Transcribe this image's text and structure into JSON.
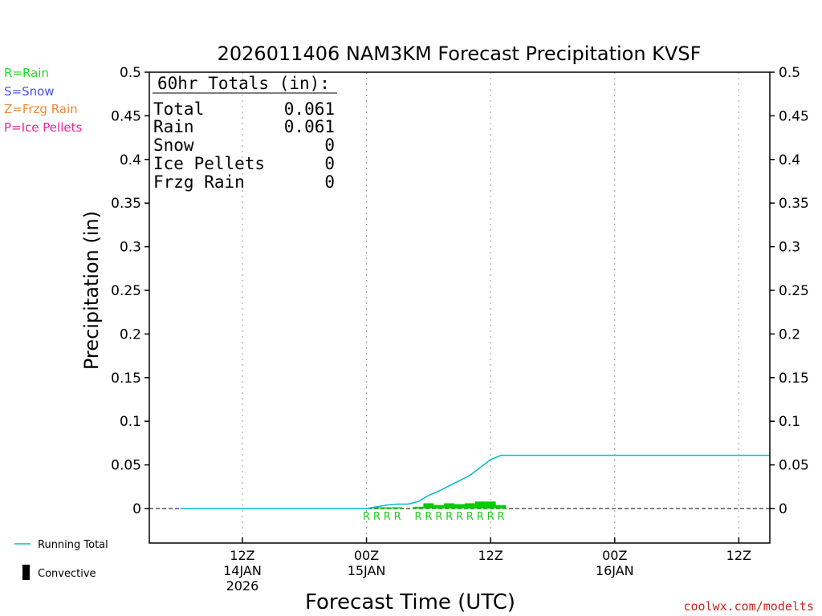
{
  "chart_data": {
    "type": "bar",
    "title": "2026011406 NAM3KM Forecast Precipitation KVSF",
    "xlabel": "Forecast Time (UTC)",
    "ylabel": "Precipitation (in)",
    "ylim": [
      -0.04,
      0.5
    ],
    "y_ticks": [
      0,
      0.05,
      0.1,
      0.15,
      0.2,
      0.25,
      0.3,
      0.35,
      0.4,
      0.45,
      0.5
    ],
    "y_tick_labels": [
      "0",
      "0.05",
      "0.1",
      "0.15",
      "0.2",
      "0.25",
      "0.3",
      "0.35",
      "0.4",
      "0.45",
      "0.5"
    ],
    "x_range_hours": [
      -3,
      57
    ],
    "x_ticks": [
      {
        "hour": 6,
        "labels": [
          "12Z",
          "14JAN",
          "2026"
        ]
      },
      {
        "hour": 18,
        "labels": [
          "00Z",
          "15JAN"
        ]
      },
      {
        "hour": 30,
        "labels": [
          "12Z"
        ]
      },
      {
        "hour": 42,
        "labels": [
          "00Z",
          "16JAN"
        ]
      },
      {
        "hour": 54,
        "labels": [
          "12Z"
        ]
      }
    ],
    "grid": "vertical dotted",
    "precip_bars": {
      "hours": [
        19,
        20,
        21,
        23,
        24,
        25,
        26,
        27,
        28,
        29,
        30,
        31
      ],
      "values": [
        0.001,
        0.001,
        0.001,
        0.002,
        0.006,
        0.004,
        0.006,
        0.005,
        0.006,
        0.008,
        0.008,
        0.004
      ],
      "type_codes": [
        "R",
        "R",
        "R",
        "R",
        "R",
        "R",
        "R",
        "R",
        "R",
        "R",
        "R",
        "R"
      ],
      "color": "#00cc00"
    },
    "type_marker_hours": [
      18,
      19,
      20,
      21,
      23,
      24,
      25,
      26,
      27,
      28,
      29,
      30,
      31
    ],
    "running_total": {
      "name": "Running Total",
      "color": "#00bbcc",
      "hours": [
        0,
        18,
        19,
        20,
        21,
        22,
        23,
        24,
        25,
        26,
        27,
        28,
        29,
        30,
        31,
        57
      ],
      "values": [
        0,
        0,
        0.002,
        0.004,
        0.005,
        0.005,
        0.008,
        0.015,
        0.02,
        0.026,
        0.032,
        0.038,
        0.047,
        0.056,
        0.061,
        0.061
      ]
    }
  },
  "legend": {
    "rain": {
      "text": "R=Rain",
      "color": "#22dd22"
    },
    "snow": {
      "text": "S=Snow",
      "color": "#4455ee"
    },
    "frzg": {
      "text": "Z=Frzg Rain",
      "color": "#ee8833"
    },
    "ice": {
      "text": "P=Ice Pellets",
      "color": "#ee2299"
    }
  },
  "totals_box": {
    "heading": "60hr Totals (in):",
    "rows": [
      {
        "label": "Total",
        "value": "0.061"
      },
      {
        "label": "Rain",
        "value": "0.061"
      },
      {
        "label": "Snow",
        "value": "0"
      },
      {
        "label": "Ice Pellets",
        "value": "0"
      },
      {
        "label": "Frzg Rain",
        "value": "0"
      }
    ]
  },
  "bottom_legend": {
    "running_total": "Running Total",
    "convective": "Convective"
  },
  "credit": "coolwx.com/modelts"
}
